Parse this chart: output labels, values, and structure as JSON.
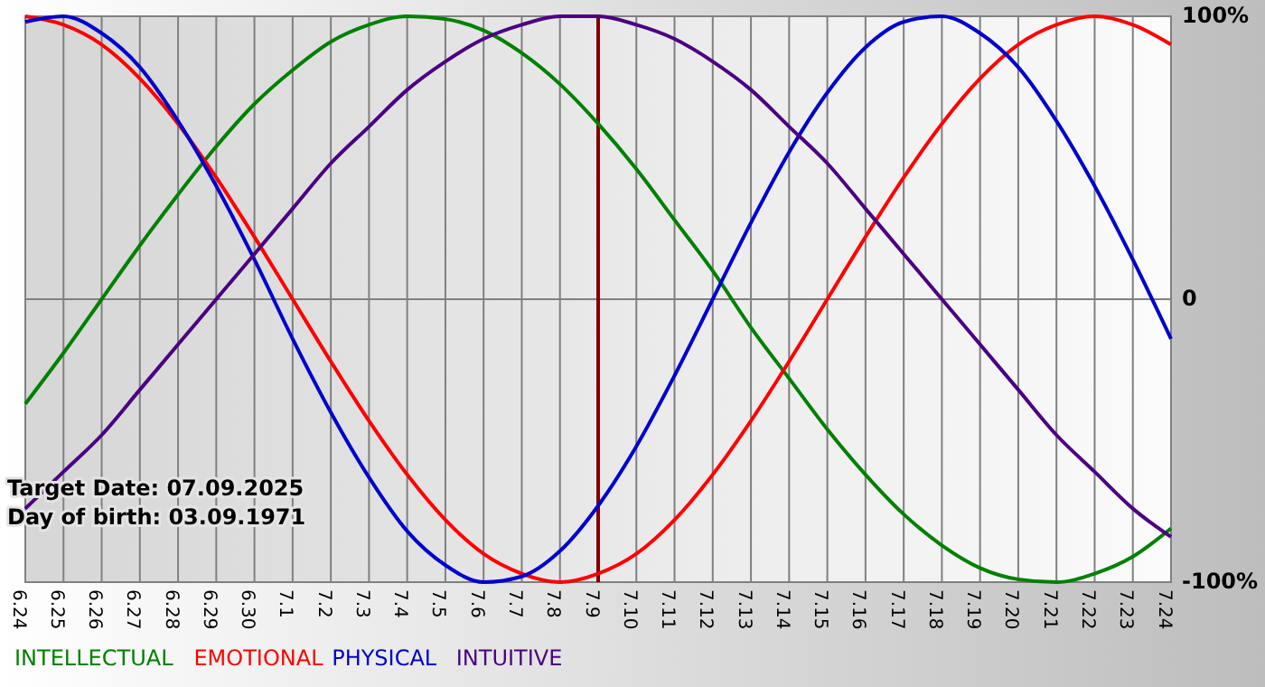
{
  "chart_data": {
    "type": "line",
    "categories": [
      "6.24",
      "6.25",
      "6.26",
      "6.27",
      "6.28",
      "6.29",
      "6.30",
      "7.1",
      "7.2",
      "7.3",
      "7.4",
      "7.5",
      "7.6",
      "7.7",
      "7.8",
      "7.9",
      "7.10",
      "7.11",
      "7.12",
      "7.13",
      "7.14",
      "7.15",
      "7.16",
      "7.17",
      "7.18",
      "7.19",
      "7.20",
      "7.21",
      "7.22",
      "7.23",
      "7.24"
    ],
    "series": [
      {
        "name": "INTELLECTUAL",
        "color": "#008000",
        "values": [
          -37,
          -19,
          0,
          19,
          37,
          54,
          69,
          81,
          91,
          97,
          100,
          99,
          95,
          87,
          76,
          62,
          46,
          28,
          10,
          -10,
          -28,
          -46,
          -62,
          -76,
          -87,
          -95,
          -99,
          -100,
          -97,
          -91,
          -81
        ]
      },
      {
        "name": "EMOTIONAL",
        "color": "#ff0000",
        "values": [
          100,
          97,
          90,
          78,
          62,
          43,
          22,
          0,
          -22,
          -43,
          -62,
          -78,
          -90,
          -97,
          -100,
          -97,
          -90,
          -78,
          -62,
          -43,
          -22,
          0,
          22,
          43,
          62,
          78,
          90,
          97,
          100,
          97,
          90
        ]
      },
      {
        "name": "PHYSICAL",
        "color": "#0000cc",
        "values": [
          98,
          100,
          94,
          82,
          63,
          40,
          14,
          -14,
          -40,
          -63,
          -82,
          -94,
          -100,
          -98,
          -89,
          -73,
          -52,
          -27,
          0,
          27,
          52,
          73,
          89,
          98,
          100,
          94,
          82,
          63,
          40,
          14,
          -14
        ]
      },
      {
        "name": "INTUITIVE",
        "color": "#4b0082",
        "values": [
          -74,
          -61,
          -48,
          -32,
          -16,
          0,
          16,
          32,
          48,
          61,
          74,
          84,
          92,
          97,
          100,
          100,
          97,
          92,
          84,
          74,
          61,
          48,
          32,
          16,
          0,
          -16,
          -32,
          -48,
          -61,
          -74,
          -84
        ]
      }
    ],
    "ylim": [
      -100,
      100
    ],
    "yticks": [
      {
        "value": 100,
        "label": "100%"
      },
      0,
      {
        "value": -100,
        "label": "-100%"
      }
    ],
    "grid": true,
    "legend": "bottom",
    "marker": "none",
    "line_style": "solid",
    "ref_lines": [
      {
        "axis": "x",
        "value": "7.9",
        "color": "#800000"
      }
    ],
    "annotations": [
      "Target Date: 07.09.2025",
      "Day of birth: 03.09.1971"
    ]
  }
}
